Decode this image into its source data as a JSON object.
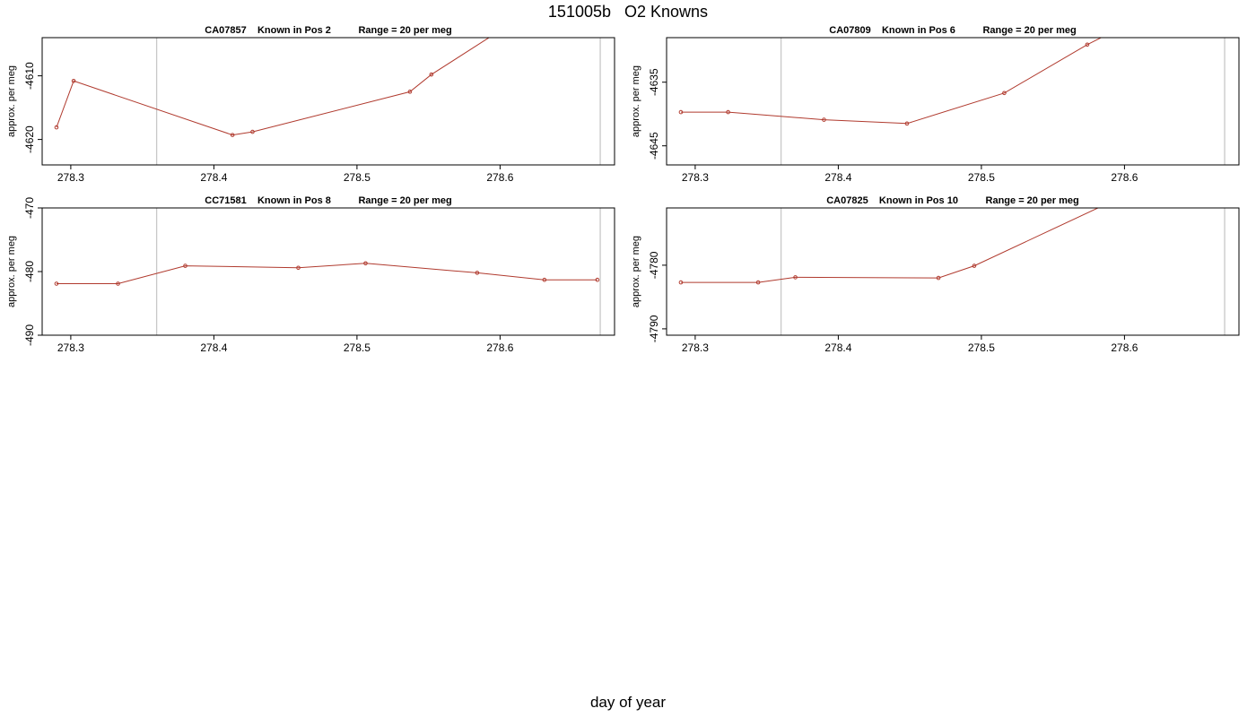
{
  "title": "151005b   O2 Knowns",
  "xlabel": "day of year",
  "colors": {
    "series": "#b03a2e",
    "vline": "#c8c8c8",
    "frame": "#000000"
  },
  "chart_data": [
    {
      "type": "line",
      "panel_title": {
        "sample": "CA07857",
        "position": "Known in Pos 2",
        "range": "Range = 20 per meg"
      },
      "ylabel": "approx. per meg",
      "xlim": [
        278.28,
        278.68
      ],
      "ylim": [
        -4624,
        -4604
      ],
      "xticks": [
        278.3,
        278.4,
        278.5,
        278.6
      ],
      "yticks": [
        -4610,
        -4620
      ],
      "vlines": [
        278.36,
        278.67
      ],
      "x": [
        278.29,
        278.302,
        278.413,
        278.427,
        278.537,
        278.552,
        278.62
      ],
      "y": [
        -4618.1,
        -4610.8,
        -4619.3,
        -4618.8,
        -4612.5,
        -4609.8,
        -4600
      ]
    },
    {
      "type": "line",
      "panel_title": {
        "sample": "CA07809",
        "position": "Known in Pos 6",
        "range": "Range = 20 per meg"
      },
      "ylabel": "approx. per meg",
      "xlim": [
        278.28,
        278.68
      ],
      "ylim": [
        -4648,
        -4628
      ],
      "xticks": [
        278.3,
        278.4,
        278.5,
        278.6
      ],
      "yticks": [
        -4635,
        -4645
      ],
      "vlines": [
        278.36,
        278.67
      ],
      "x": [
        278.29,
        278.323,
        278.39,
        278.448,
        278.516,
        278.574,
        278.61
      ],
      "y": [
        -4639.7,
        -4639.7,
        -4640.9,
        -4641.5,
        -4636.7,
        -4629.1,
        -4625
      ]
    },
    {
      "type": "line",
      "panel_title": {
        "sample": "CC71581",
        "position": "Known in Pos 8",
        "range": "Range = 20 per meg"
      },
      "ylabel": "approx. per meg",
      "xlim": [
        278.28,
        278.68
      ],
      "ylim": [
        -490,
        -470
      ],
      "xticks": [
        278.3,
        278.4,
        278.5,
        278.6
      ],
      "yticks": [
        -470,
        -480,
        -490
      ],
      "vlines": [
        278.36,
        278.67
      ],
      "x": [
        278.29,
        278.333,
        278.38,
        278.459,
        278.506,
        278.584,
        278.631,
        278.668
      ],
      "y": [
        -481.9,
        -481.9,
        -479.1,
        -479.4,
        -478.7,
        -480.2,
        -481.3,
        -481.3
      ]
    },
    {
      "type": "line",
      "panel_title": {
        "sample": "CA07825",
        "position": "Known in Pos 10",
        "range": "Range = 20 per meg"
      },
      "ylabel": "approx. per meg",
      "xlim": [
        278.28,
        278.68
      ],
      "ylim": [
        -4791,
        -4771
      ],
      "xticks": [
        278.3,
        278.4,
        278.5,
        278.6
      ],
      "yticks": [
        -4780,
        -4790
      ],
      "vlines": [
        278.36,
        278.67
      ],
      "x": [
        278.29,
        278.344,
        278.37,
        278.47,
        278.495,
        278.61
      ],
      "y": [
        -4782.7,
        -4782.7,
        -4781.9,
        -4782.0,
        -4780.1,
        -4768
      ]
    }
  ]
}
